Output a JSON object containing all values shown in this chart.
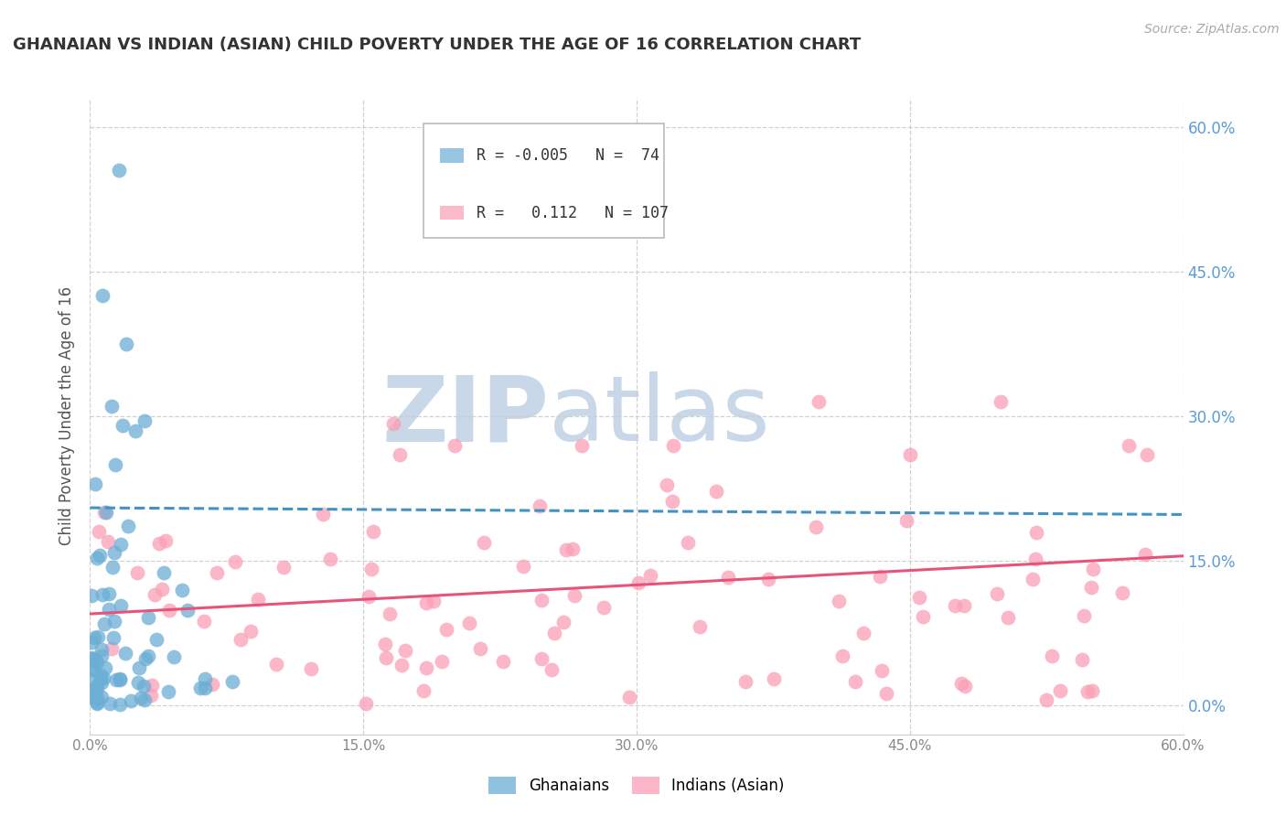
{
  "title": "GHANAIAN VS INDIAN (ASIAN) CHILD POVERTY UNDER THE AGE OF 16 CORRELATION CHART",
  "source": "Source: ZipAtlas.com",
  "ylabel": "Child Poverty Under the Age of 16",
  "blue_color": "#6baed6",
  "pink_color": "#fa9fb5",
  "blue_line_color": "#4292c6",
  "pink_line_color": "#e8537a",
  "grid_color": "#cccccc",
  "watermark_zip_color": "#c8d8e8",
  "watermark_atlas_color": "#c8d8e8",
  "tick_color": "#888888",
  "right_tick_color": "#5b9bd5",
  "legend_R1": "-0.005",
  "legend_N1": "74",
  "legend_R2": "0.112",
  "legend_N2": "107",
  "legend_label1": "Ghanaians",
  "legend_label2": "Indians (Asian)",
  "xmin": 0.0,
  "xmax": 0.6,
  "ymin": -0.03,
  "ymax": 0.63,
  "blue_line_x0": 0.0,
  "blue_line_x1": 0.6,
  "blue_line_y0": 0.205,
  "blue_line_y1": 0.198,
  "pink_line_x0": 0.0,
  "pink_line_x1": 0.6,
  "pink_line_y0": 0.095,
  "pink_line_y1": 0.155
}
